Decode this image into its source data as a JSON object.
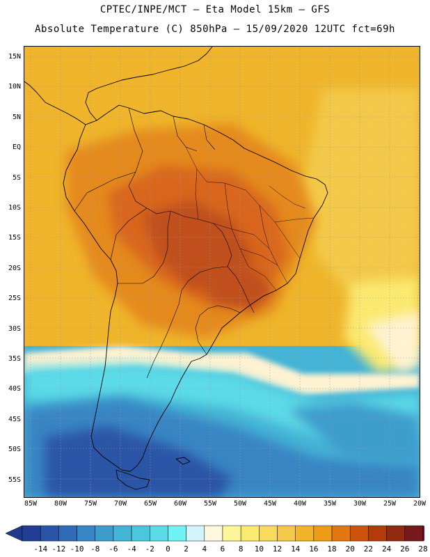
{
  "header": {
    "line1": "CPTEC/INPE/MCT –  Eta Model 15km – GFS",
    "line2": "Absolute Temperature (C) 850hPa – 15/09/2020 12UTC fct=69h"
  },
  "axes": {
    "lat_ticks": [
      "15N",
      "10N",
      "5N",
      "EQ",
      "5S",
      "10S",
      "15S",
      "20S",
      "25S",
      "30S",
      "35S",
      "40S",
      "45S",
      "50S",
      "55S"
    ],
    "lon_ticks": [
      "85W",
      "80W",
      "75W",
      "70W",
      "65W",
      "60W",
      "55W",
      "50W",
      "45W",
      "40W",
      "35W",
      "30W",
      "25W",
      "20W"
    ]
  },
  "colorbar": {
    "labels": [
      "-14",
      "-12",
      "-10",
      "-8",
      "-6",
      "-4",
      "-2",
      "0",
      "2",
      "4",
      "6",
      "8",
      "10",
      "12",
      "14",
      "16",
      "18",
      "20",
      "22",
      "24",
      "26",
      "28"
    ],
    "low_color": "#1f3a8c",
    "high_color": "#7a0f2c",
    "colors": [
      "#233f93",
      "#2a55a6",
      "#306bb6",
      "#3785c4",
      "#3d9dcd",
      "#43b3d6",
      "#4ac7de",
      "#5bdbe8",
      "#6ff3f4",
      "#d2f4fa",
      "#fff8df",
      "#fdf59a",
      "#fbea70",
      "#f8db5c",
      "#f4c94a",
      "#f0b52a",
      "#ec9c17",
      "#e27611",
      "#cd520d",
      "#b13b0a",
      "#902a10",
      "#75191b"
    ]
  },
  "map_palette": {
    "deep_cold": "#2a55a6",
    "cold": "#3785c4",
    "cool": "#43b3d6",
    "cyan": "#5bdbe8",
    "pale": "#fff3d2",
    "yellow": "#f8db5c",
    "orange": "#f0b52a",
    "dark_orange": "#e58a1a",
    "red_orange": "#d9661a",
    "brown": "#c0501a"
  }
}
